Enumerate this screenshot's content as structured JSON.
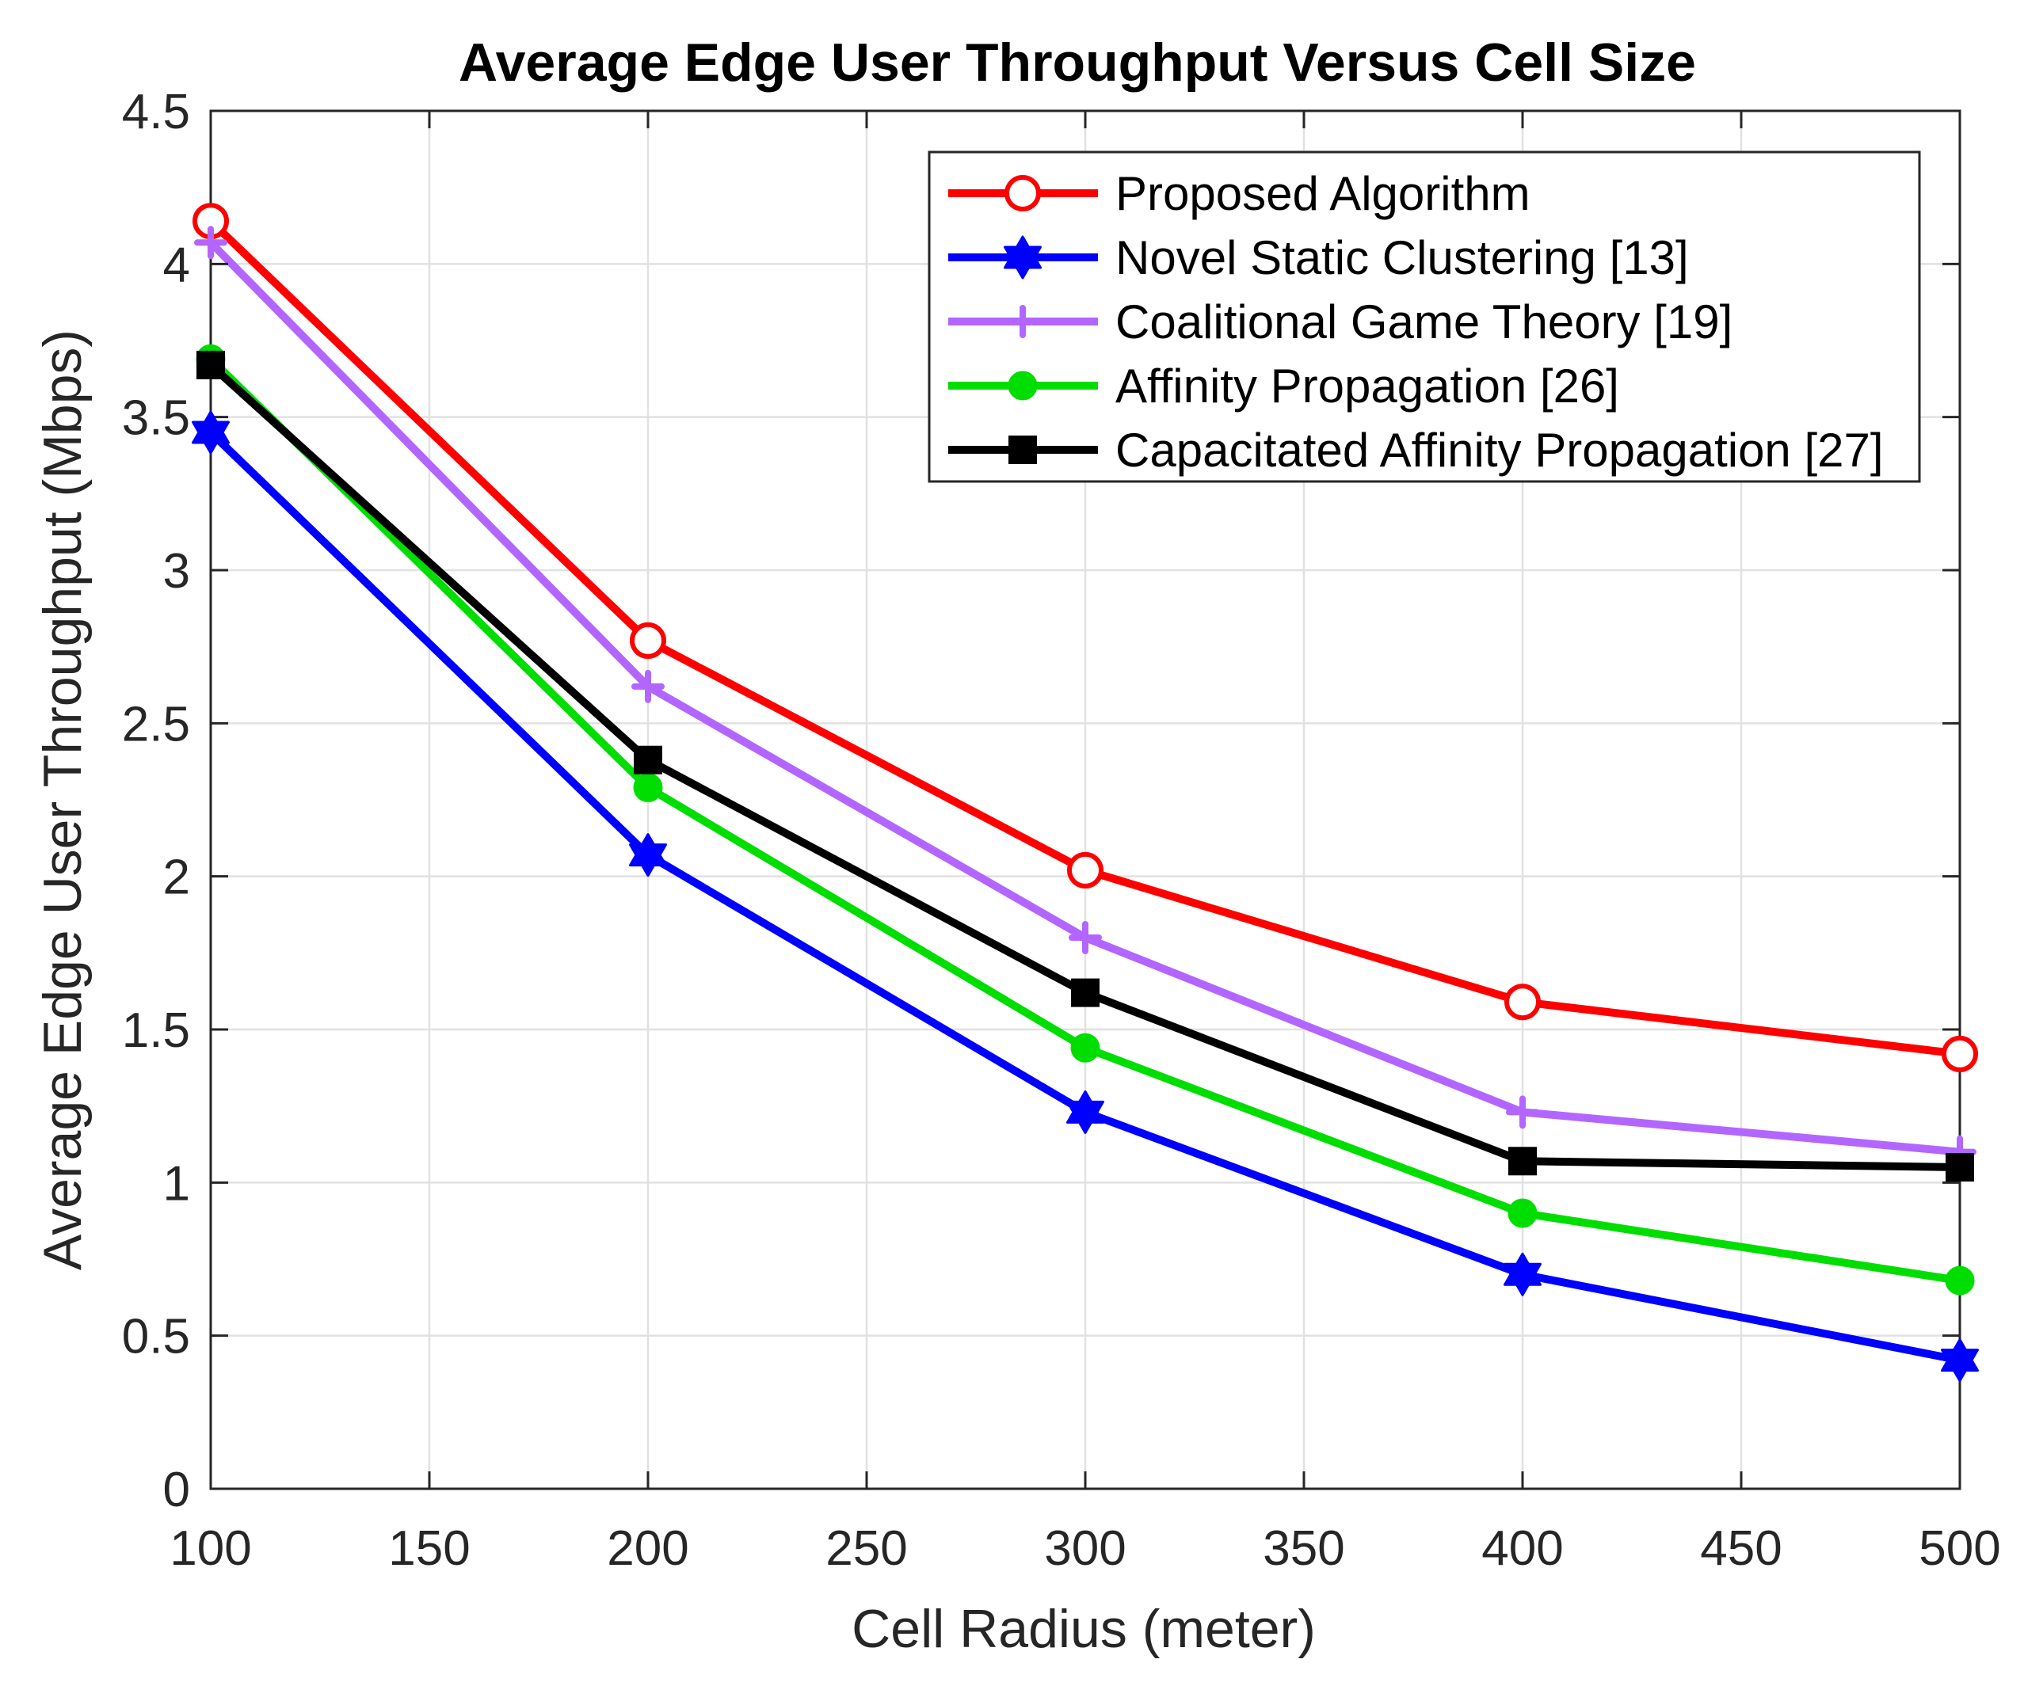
{
  "chart_data": {
    "type": "line",
    "title": "Average Edge User Throughput Versus Cell Size",
    "xlabel": "Cell Radius (meter)",
    "ylabel": "Average Edge User Throughput (Mbps)",
    "xlim": [
      100,
      500
    ],
    "ylim": [
      0,
      4.5
    ],
    "xticks": [
      100,
      150,
      200,
      250,
      300,
      350,
      400,
      450,
      500
    ],
    "yticks": [
      0,
      0.5,
      1,
      1.5,
      2,
      2.5,
      3,
      3.5,
      4,
      4.5
    ],
    "xtick_labels": [
      "100",
      "150",
      "200",
      "250",
      "300",
      "350",
      "400",
      "450",
      "500"
    ],
    "ytick_labels": [
      "0",
      "0.5",
      "1",
      "1.5",
      "2",
      "2.5",
      "3",
      "3.5",
      "4",
      "4.5"
    ],
    "grid": true,
    "legend_position": "top-right",
    "x": [
      100,
      200,
      300,
      400,
      500
    ],
    "series": [
      {
        "name": "Proposed Algorithm",
        "color": "#ff0000",
        "marker": "circle-open",
        "values": [
          4.14,
          2.77,
          2.02,
          1.59,
          1.42
        ]
      },
      {
        "name": "Novel Static Clustering [13]",
        "color": "#0000ff",
        "marker": "hexagram",
        "values": [
          3.45,
          2.07,
          1.23,
          0.7,
          0.42
        ]
      },
      {
        "name": "Coalitional Game Theory [19]",
        "color": "#b266ff",
        "marker": "plus",
        "values": [
          4.07,
          2.62,
          1.8,
          1.23,
          1.1
        ]
      },
      {
        "name": "Affinity Propagation [26]",
        "color": "#00dd00",
        "marker": "circle-filled",
        "values": [
          3.69,
          2.29,
          1.44,
          0.9,
          0.68
        ]
      },
      {
        "name": "Capacitated Affinity Propagation [27]",
        "color": "#000000",
        "marker": "square",
        "values": [
          3.67,
          2.38,
          1.62,
          1.07,
          1.05
        ]
      }
    ]
  }
}
